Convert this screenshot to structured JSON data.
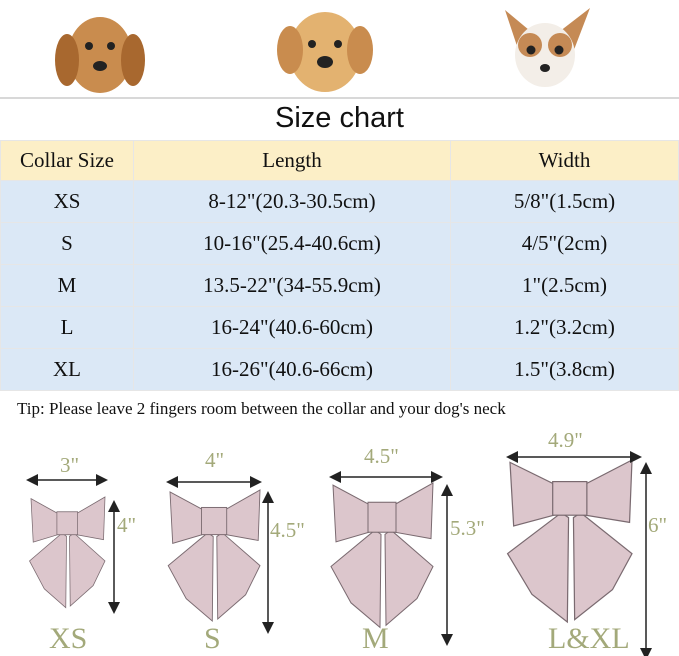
{
  "title": "Size chart",
  "table": {
    "headers": [
      "Collar Size",
      "Length",
      "Width"
    ],
    "rows": [
      [
        "XS",
        "8-12\"(20.3-30.5cm)",
        "5/8\"(1.5cm)"
      ],
      [
        "S",
        "10-16\"(25.4-40.6cm)",
        "4/5\"(2cm)"
      ],
      [
        "M",
        "13.5-22\"(34-55.9cm)",
        "1\"(2.5cm)"
      ],
      [
        "L",
        "16-24\"(40.6-60cm)",
        "1.2\"(3.2cm)"
      ],
      [
        "XL",
        "16-26\"(40.6-66cm)",
        "1.5\"(3.8cm)"
      ]
    ]
  },
  "tip": "Tip: Please leave 2 fingers room between the collar and your dog's neck",
  "bows": [
    {
      "size": "XS",
      "width": "3\"",
      "height": "4\""
    },
    {
      "size": "S",
      "width": "4\"",
      "height": "4.5\""
    },
    {
      "size": "M",
      "width": "4.5\"",
      "height": "5.3\""
    },
    {
      "size": "L&XL",
      "width": "4.9\"",
      "height": "6\""
    }
  ],
  "colors": {
    "header": "#fcefc7",
    "row": "#dbe8f6",
    "bow": "#dcc6cc",
    "label": "#a3a97a"
  }
}
